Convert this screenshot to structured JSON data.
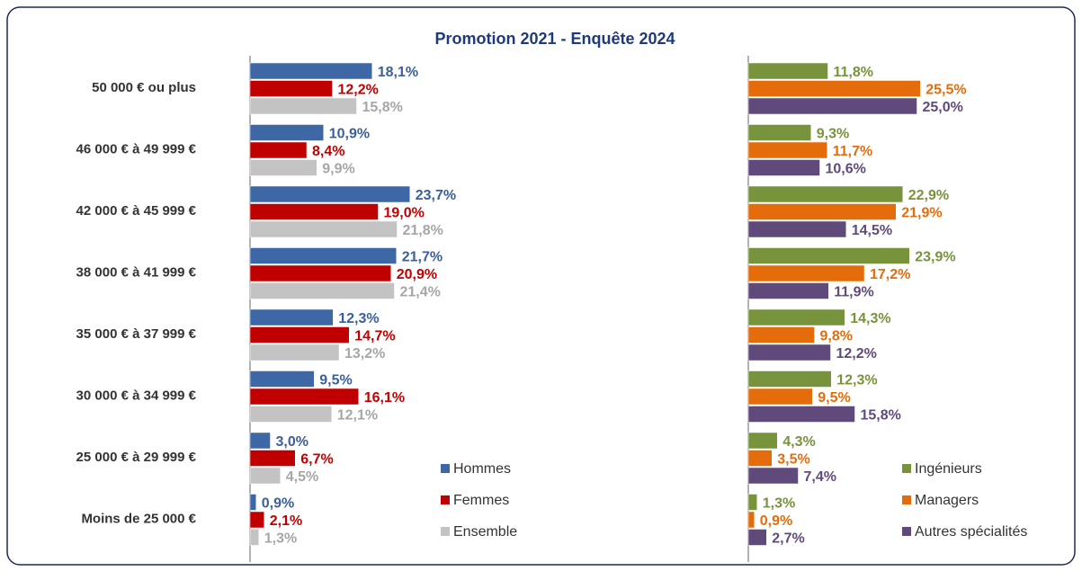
{
  "chart_data": [
    {
      "type": "bar",
      "orientation": "horizontal",
      "title": "Promotion 2021 - Enquête 2024",
      "categories": [
        "50 000 € ou plus",
        "46 000 € à 49 999 €",
        "42 000 € à 45 999 €",
        "38 000 € à 41 999 €",
        "35 000 € à 37 999 €",
        "30 000 € à 34 999 €",
        "25 000 € à 29 999 €",
        "Moins de 25 000 €"
      ],
      "xlim": [
        0,
        30
      ],
      "series": [
        {
          "name": "Hommes",
          "color": "#3d68a5",
          "label_color": "#3a5f9a",
          "values": [
            18.1,
            10.9,
            23.7,
            21.7,
            12.3,
            9.5,
            3.0,
            0.9
          ],
          "value_labels": [
            "18,1%",
            "10,9%",
            "23,7%",
            "21,7%",
            "12,3%",
            "9,5%",
            "3,0%",
            "0,9%"
          ]
        },
        {
          "name": "Femmes",
          "color": "#c00000",
          "label_color": "#c00000",
          "values": [
            12.2,
            8.4,
            19.0,
            20.9,
            14.7,
            16.1,
            6.7,
            2.1
          ],
          "value_labels": [
            "12,2%",
            "8,4%",
            "19,0%",
            "20,9%",
            "14,7%",
            "16,1%",
            "6,7%",
            "2,1%"
          ]
        },
        {
          "name": "Ensemble",
          "color": "#c3c3c3",
          "label_color": "#a6a6a6",
          "values": [
            15.8,
            9.9,
            21.8,
            21.4,
            13.2,
            12.1,
            4.5,
            1.3
          ],
          "value_labels": [
            "15,8%",
            "9,9%",
            "21,8%",
            "21,4%",
            "13,2%",
            "12,1%",
            "4,5%",
            "1,3%"
          ]
        }
      ]
    },
    {
      "type": "bar",
      "orientation": "horizontal",
      "xlim": [
        0,
        30
      ],
      "series": [
        {
          "name": "Ingénieurs",
          "color": "#77933c",
          "label_color": "#77933c",
          "values": [
            11.8,
            9.3,
            22.9,
            23.9,
            14.3,
            12.3,
            4.3,
            1.3
          ],
          "value_labels": [
            "11,8%",
            "9,3%",
            "22,9%",
            "23,9%",
            "14,3%",
            "12,3%",
            "4,3%",
            "1,3%"
          ]
        },
        {
          "name": "Managers",
          "color": "#e46c0a",
          "label_color": "#e46c0a",
          "values": [
            25.5,
            11.7,
            21.9,
            17.2,
            9.8,
            9.5,
            3.5,
            0.9
          ],
          "value_labels": [
            "25,5%",
            "11,7%",
            "21,9%",
            "17,2%",
            "9,8%",
            "9,5%",
            "3,5%",
            "0,9%"
          ]
        },
        {
          "name": "Autres spécialités",
          "color": "#604a7b",
          "label_color": "#604a7b",
          "values": [
            25.0,
            10.6,
            14.5,
            11.9,
            12.2,
            15.8,
            7.4,
            2.7
          ],
          "value_labels": [
            "25,0%",
            "10,6%",
            "14,5%",
            "11,9%",
            "12,2%",
            "15,8%",
            "7,4%",
            "2,7%"
          ]
        }
      ]
    }
  ]
}
